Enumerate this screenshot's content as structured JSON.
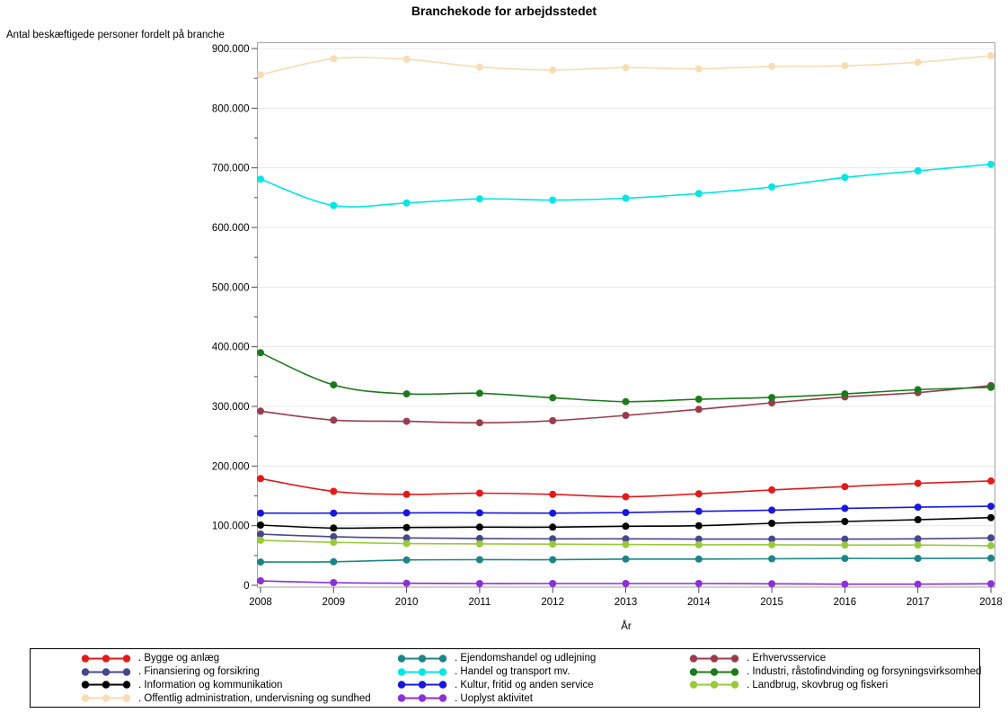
{
  "chart_data": {
    "type": "line",
    "title": "Branchekode for arbejdsstedet",
    "xlabel": "År",
    "ylabel": "Antal beskæftigede personer fordelt på branche",
    "x": [
      "2008",
      "2009",
      "2010",
      "2011",
      "2012",
      "2013",
      "2014",
      "2015",
      "2016",
      "2017",
      "2018"
    ],
    "ylim": [
      0,
      900000
    ],
    "y_tick_interval": 100000,
    "y_minor_tick_interval": 50000,
    "y_ticks": [
      "0",
      "100.000",
      "200.000",
      "300.000",
      "400.000",
      "500.000",
      "600.000",
      "700.000",
      "800.000",
      "900.000"
    ],
    "grid": "horizontal",
    "legend_position": "bottom",
    "legend_columns": 3,
    "marker": "circle",
    "series": [
      {
        "label": ". Bygge og anlæg",
        "color": "#E31A1A",
        "values": [
          179000,
          157500,
          152500,
          154500,
          152500,
          148500,
          153500,
          160000,
          165500,
          171000,
          175000
        ]
      },
      {
        "label": ". Finansiering og forsikring",
        "color": "#47478C",
        "values": [
          86000,
          81500,
          79500,
          78500,
          78000,
          78000,
          77500,
          77500,
          77500,
          78000,
          79500
        ]
      },
      {
        "label": ". Information og kommunikation",
        "color": "#000000",
        "values": [
          101000,
          96000,
          97000,
          97500,
          97500,
          99000,
          100000,
          104000,
          107000,
          110000,
          113500
        ]
      },
      {
        "label": ". Offentlig administration, undervisning og sundhed",
        "color": "#F8DCB4",
        "values": [
          856000,
          883000,
          882000,
          869000,
          864000,
          868000,
          866000,
          870000,
          871000,
          877000,
          888000
        ]
      },
      {
        "label": ". Ejendomshandel og udlejning",
        "color": "#1C8585",
        "values": [
          39000,
          39500,
          42500,
          43000,
          43000,
          44000,
          44000,
          44500,
          45000,
          45000,
          45500
        ]
      },
      {
        "label": ". Handel og transport mv.",
        "color": "#00E6E6",
        "values": [
          681000,
          637000,
          641000,
          648000,
          646000,
          649000,
          657000,
          668000,
          684000,
          695000,
          706000
        ]
      },
      {
        "label": ". Kultur, fritid og anden service",
        "color": "#1717E0",
        "values": [
          121000,
          121000,
          121500,
          121500,
          121000,
          122000,
          124000,
          126000,
          129000,
          131000,
          132500
        ]
      },
      {
        "label": ". Uoplyst aktivitet",
        "color": "#8C30D6",
        "values": [
          7500,
          4500,
          3500,
          3000,
          3000,
          3000,
          3000,
          2500,
          2000,
          2000,
          2500
        ]
      },
      {
        "label": ". Erhvervsservice",
        "color": "#993D4D",
        "values": [
          292000,
          277000,
          275000,
          272500,
          276000,
          285000,
          295000,
          306000,
          316000,
          323000,
          335000
        ]
      },
      {
        "label": ". Industri, råstofindvinding og forsyningsvirksomhed",
        "color": "#1B7B1B",
        "values": [
          390000,
          336000,
          321000,
          322000,
          314500,
          308000,
          312000,
          315000,
          321000,
          328000,
          332000
        ]
      },
      {
        "label": ". Landbrug, skovbrug og fiskeri",
        "color": "#99C93C",
        "values": [
          75500,
          72000,
          70000,
          69500,
          69000,
          68500,
          68000,
          68000,
          67500,
          67500,
          66500
        ]
      }
    ]
  },
  "colors": {
    "background": "#FFFFFF",
    "grid": "#E8E8E8",
    "frame": "#A3A3A3",
    "tick": "#4D4D4D",
    "text": "#000000",
    "legend_border": "#000000"
  }
}
